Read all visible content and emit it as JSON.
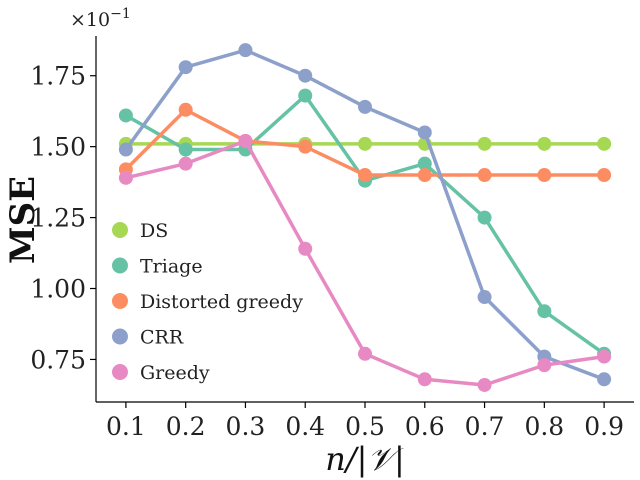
{
  "chart_data": {
    "type": "line",
    "xlabel": "n/|𝒱|",
    "ylabel": "MSE",
    "y_multiplier": {
      "base": "×10",
      "exp": "−1"
    },
    "x": [
      0.1,
      0.2,
      0.3,
      0.4,
      0.5,
      0.6,
      0.7,
      0.8,
      0.9
    ],
    "x_tick_labels": [
      "0.1",
      "0.2",
      "0.3",
      "0.4",
      "0.5",
      "0.6",
      "0.7",
      "0.8",
      "0.9"
    ],
    "y_ticks": [
      0.75,
      1.0,
      1.25,
      1.5,
      1.75
    ],
    "y_tick_labels": [
      "0.75",
      "1.00",
      "1.25",
      "1.50",
      "1.75"
    ],
    "xlim": [
      0.05,
      0.95
    ],
    "ylim": [
      0.6,
      1.89
    ],
    "grid": false,
    "legend_position": "center-left",
    "series": [
      {
        "name": "DS",
        "color": "#a6d854",
        "values": [
          1.51,
          1.51,
          1.51,
          1.51,
          1.51,
          1.51,
          1.51,
          1.51,
          1.51
        ]
      },
      {
        "name": "Triage",
        "color": "#66c2a5",
        "values": [
          1.61,
          1.49,
          1.49,
          1.68,
          1.38,
          1.44,
          1.25,
          0.92,
          0.77
        ]
      },
      {
        "name": "Distorted greedy",
        "color": "#fc8d62",
        "values": [
          1.42,
          1.63,
          1.52,
          1.5,
          1.4,
          1.4,
          1.4,
          1.4,
          1.4
        ]
      },
      {
        "name": "CRR",
        "color": "#8da0cb",
        "values": [
          1.49,
          1.78,
          1.84,
          1.75,
          1.64,
          1.55,
          0.97,
          0.76,
          0.68
        ]
      },
      {
        "name": "Greedy",
        "color": "#e78ac3",
        "values": [
          1.39,
          1.44,
          1.52,
          1.14,
          0.77,
          0.68,
          0.66,
          0.73,
          0.76
        ]
      }
    ]
  }
}
